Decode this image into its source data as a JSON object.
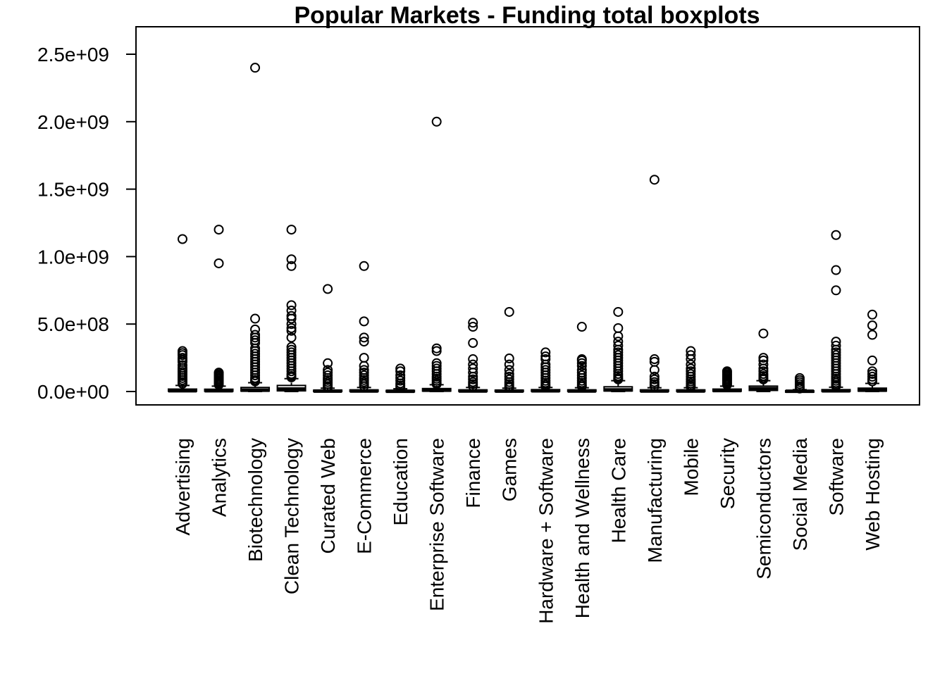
{
  "chart_data": {
    "type": "boxplot",
    "title": "Popular Markets - Funding total boxplots",
    "xlabel": "",
    "ylabel": "",
    "ylim": [
      -100000000,
      2700000000
    ],
    "y_ticks": [
      0,
      500000000,
      1000000000,
      1500000000,
      2000000000,
      2500000000
    ],
    "y_tick_labels": [
      "0.0e+00",
      "5.0e+08",
      "1.0e+09",
      "1.5e+09",
      "2.0e+09",
      "2.5e+09"
    ],
    "grid": false,
    "categories": [
      "Advertising",
      "Analytics",
      "Biotechnology",
      "Clean Technology",
      "Curated Web",
      "E-Commerce",
      "Education",
      "Enterprise Software",
      "Finance",
      "Games",
      "Hardware + Software",
      "Health and Wellness",
      "Health Care",
      "Manufacturing",
      "Mobile",
      "Security",
      "Semiconductors",
      "Social Media",
      "Software",
      "Web Hosting"
    ],
    "boxes": [
      {
        "low": 0,
        "q1": 2000000,
        "median": 6000000,
        "q3": 18000000,
        "high": 45000000,
        "outliers": [
          1130000000,
          300000000,
          285000000,
          270000000,
          250000000,
          235000000,
          220000000,
          195000000,
          175000000,
          160000000,
          145000000,
          130000000,
          115000000,
          100000000,
          85000000,
          70000000,
          58000000
        ]
      },
      {
        "low": 0,
        "q1": 2000000,
        "median": 6000000,
        "q3": 17000000,
        "high": 40000000,
        "outliers": [
          1200000000,
          950000000,
          140000000,
          130000000,
          120000000,
          110000000,
          100000000,
          90000000,
          80000000,
          70000000,
          60000000,
          50000000
        ]
      },
      {
        "low": 0,
        "q1": 3000000,
        "median": 10000000,
        "q3": 30000000,
        "high": 65000000,
        "outliers": [
          2400000000,
          540000000,
          460000000,
          420000000,
          400000000,
          380000000,
          360000000,
          320000000,
          300000000,
          280000000,
          260000000,
          240000000,
          220000000,
          200000000,
          180000000,
          160000000,
          140000000,
          120000000,
          100000000,
          85000000,
          75000000
        ]
      },
      {
        "low": 0,
        "q1": 5000000,
        "median": 18000000,
        "q3": 45000000,
        "high": 95000000,
        "outliers": [
          1200000000,
          980000000,
          930000000,
          640000000,
          600000000,
          560000000,
          540000000,
          500000000,
          470000000,
          450000000,
          400000000,
          330000000,
          310000000,
          290000000,
          270000000,
          250000000,
          230000000,
          210000000,
          190000000,
          170000000,
          150000000,
          130000000,
          115000000,
          105000000
        ]
      },
      {
        "low": 0,
        "q1": 1000000,
        "median": 3000000,
        "q3": 10000000,
        "high": 25000000,
        "outliers": [
          760000000,
          210000000,
          160000000,
          140000000,
          120000000,
          100000000,
          85000000,
          70000000,
          55000000,
          40000000,
          30000000
        ]
      },
      {
        "low": 0,
        "q1": 1000000,
        "median": 4000000,
        "q3": 12000000,
        "high": 30000000,
        "outliers": [
          930000000,
          520000000,
          400000000,
          370000000,
          250000000,
          190000000,
          160000000,
          140000000,
          120000000,
          100000000,
          85000000,
          70000000,
          55000000,
          40000000
        ]
      },
      {
        "low": 0,
        "q1": 1000000,
        "median": 2000000,
        "q3": 8000000,
        "high": 20000000,
        "outliers": [
          170000000,
          150000000,
          120000000,
          100000000,
          80000000,
          60000000,
          45000000,
          30000000
        ]
      },
      {
        "low": 0,
        "q1": 3000000,
        "median": 10000000,
        "q3": 22000000,
        "high": 50000000,
        "outliers": [
          2000000000,
          320000000,
          300000000,
          210000000,
          190000000,
          170000000,
          150000000,
          130000000,
          110000000,
          95000000,
          80000000,
          65000000,
          55000000
        ]
      },
      {
        "low": 0,
        "q1": 1000000,
        "median": 4000000,
        "q3": 12000000,
        "high": 30000000,
        "outliers": [
          510000000,
          480000000,
          360000000,
          240000000,
          200000000,
          170000000,
          140000000,
          110000000,
          90000000,
          70000000,
          55000000,
          40000000
        ]
      },
      {
        "low": 0,
        "q1": 1000000,
        "median": 3000000,
        "q3": 10000000,
        "high": 25000000,
        "outliers": [
          590000000,
          245000000,
          200000000,
          160000000,
          130000000,
          110000000,
          90000000,
          70000000,
          55000000,
          40000000,
          30000000
        ]
      },
      {
        "low": 0,
        "q1": 1500000,
        "median": 5000000,
        "q3": 14000000,
        "high": 30000000,
        "outliers": [
          290000000,
          260000000,
          240000000,
          200000000,
          180000000,
          160000000,
          140000000,
          120000000,
          100000000,
          80000000,
          65000000,
          50000000,
          38000000
        ]
      },
      {
        "low": 0,
        "q1": 1000000,
        "median": 4000000,
        "q3": 12000000,
        "high": 28000000,
        "outliers": [
          480000000,
          240000000,
          230000000,
          210000000,
          190000000,
          160000000,
          140000000,
          120000000,
          100000000,
          80000000,
          65000000,
          50000000,
          38000000
        ]
      },
      {
        "low": 0,
        "q1": 4000000,
        "median": 12000000,
        "q3": 35000000,
        "high": 80000000,
        "outliers": [
          590000000,
          470000000,
          410000000,
          370000000,
          340000000,
          310000000,
          290000000,
          270000000,
          250000000,
          230000000,
          210000000,
          190000000,
          170000000,
          150000000,
          130000000,
          115000000,
          100000000,
          90000000
        ]
      },
      {
        "low": 0,
        "q1": 1000000,
        "median": 4000000,
        "q3": 12000000,
        "high": 28000000,
        "outliers": [
          1570000000,
          240000000,
          220000000,
          160000000,
          110000000,
          90000000,
          70000000,
          55000000,
          40000000
        ]
      },
      {
        "low": 0,
        "q1": 1000000,
        "median": 4000000,
        "q3": 12000000,
        "high": 28000000,
        "outliers": [
          300000000,
          270000000,
          240000000,
          200000000,
          170000000,
          150000000,
          130000000,
          110000000,
          90000000,
          75000000,
          60000000,
          45000000,
          35000000
        ]
      },
      {
        "low": 0,
        "q1": 2000000,
        "median": 7000000,
        "q3": 18000000,
        "high": 40000000,
        "outliers": [
          150000000,
          140000000,
          130000000,
          120000000,
          110000000,
          100000000,
          90000000,
          80000000,
          70000000,
          60000000,
          50000000
        ]
      },
      {
        "low": 0,
        "q1": 8000000,
        "median": 20000000,
        "q3": 40000000,
        "high": 80000000,
        "outliers": [
          430000000,
          250000000,
          230000000,
          200000000,
          170000000,
          150000000,
          130000000,
          115000000,
          100000000,
          90000000
        ]
      },
      {
        "low": 0,
        "q1": 500000,
        "median": 2000000,
        "q3": 6000000,
        "high": 14000000,
        "outliers": [
          100000000,
          85000000,
          70000000,
          55000000,
          40000000,
          30000000,
          22000000
        ]
      },
      {
        "low": 0,
        "q1": 1500000,
        "median": 5000000,
        "q3": 14000000,
        "high": 32000000,
        "outliers": [
          1160000000,
          900000000,
          750000000,
          370000000,
          340000000,
          310000000,
          290000000,
          270000000,
          250000000,
          230000000,
          210000000,
          190000000,
          170000000,
          150000000,
          130000000,
          110000000,
          95000000,
          80000000,
          65000000,
          50000000,
          40000000
        ]
      },
      {
        "low": 0,
        "q1": 3000000,
        "median": 10000000,
        "q3": 25000000,
        "high": 60000000,
        "outliers": [
          570000000,
          490000000,
          420000000,
          230000000,
          150000000,
          130000000,
          110000000,
          90000000,
          75000000
        ]
      }
    ]
  }
}
